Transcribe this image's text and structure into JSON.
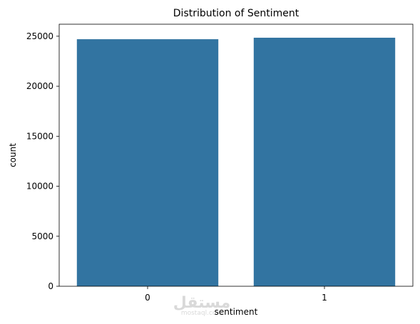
{
  "chart_data": {
    "type": "bar",
    "title": "Distribution of Sentiment",
    "xlabel": "sentiment",
    "ylabel": "count",
    "categories": [
      "0",
      "1"
    ],
    "values": [
      24700,
      24850
    ],
    "ylim": [
      0,
      26200
    ],
    "yticks": [
      0,
      5000,
      10000,
      15000,
      20000,
      25000
    ],
    "bar_color": "#3274a1",
    "grid": false,
    "legend": "none"
  },
  "watermark": {
    "text": "مستقل",
    "subtext": "mostaql.com"
  }
}
